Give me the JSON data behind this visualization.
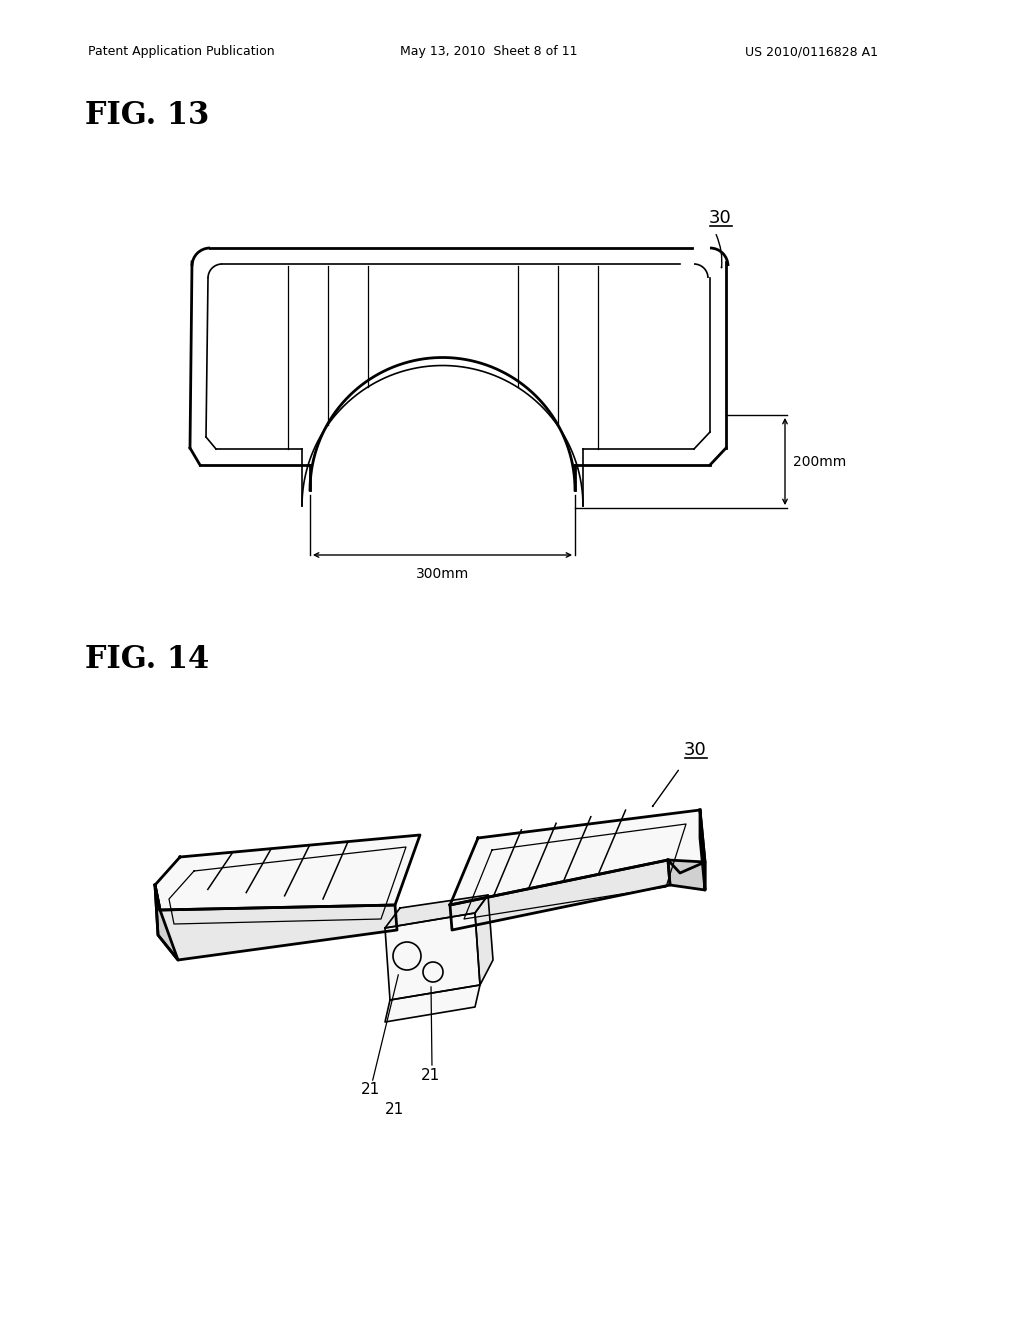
{
  "background_color": "#ffffff",
  "header_left": "Patent Application Publication",
  "header_center": "May 13, 2010  Sheet 8 of 11",
  "header_right": "US 2010/0116828 A1",
  "fig13_label": "FIG. 13",
  "fig14_label": "FIG. 14",
  "label_30": "30",
  "label_21": "21",
  "dim_200mm": "200mm",
  "dim_300mm": "300mm",
  "line_color": "#000000",
  "outer_lw": 2.0,
  "inner_lw": 1.2,
  "rib_lw": 0.9,
  "dim_lw": 1.0
}
